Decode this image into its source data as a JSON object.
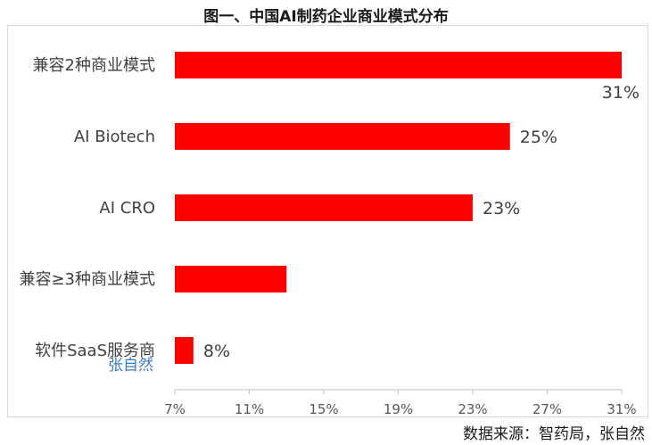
{
  "chart_data": {
    "type": "bar",
    "orientation": "horizontal",
    "title": "图一、中国AI制药企业商业模式分布",
    "categories": [
      "兼容2种商业模式",
      "AI Biotech",
      "AI CRO",
      "兼容≥3种商业模式",
      "软件SaaS服务商"
    ],
    "values": [
      31,
      25,
      23,
      13,
      8
    ],
    "data_labels": [
      "31%",
      "25%",
      "23%",
      "",
      "8%"
    ],
    "xlim": [
      7,
      31
    ],
    "xticks": [
      "7%",
      "11%",
      "15%",
      "19%",
      "23%",
      "27%",
      "31%"
    ],
    "bar_color": "#ff0000",
    "grid": false
  },
  "watermark": "张自然",
  "source": "数据来源：智药局，张自然"
}
